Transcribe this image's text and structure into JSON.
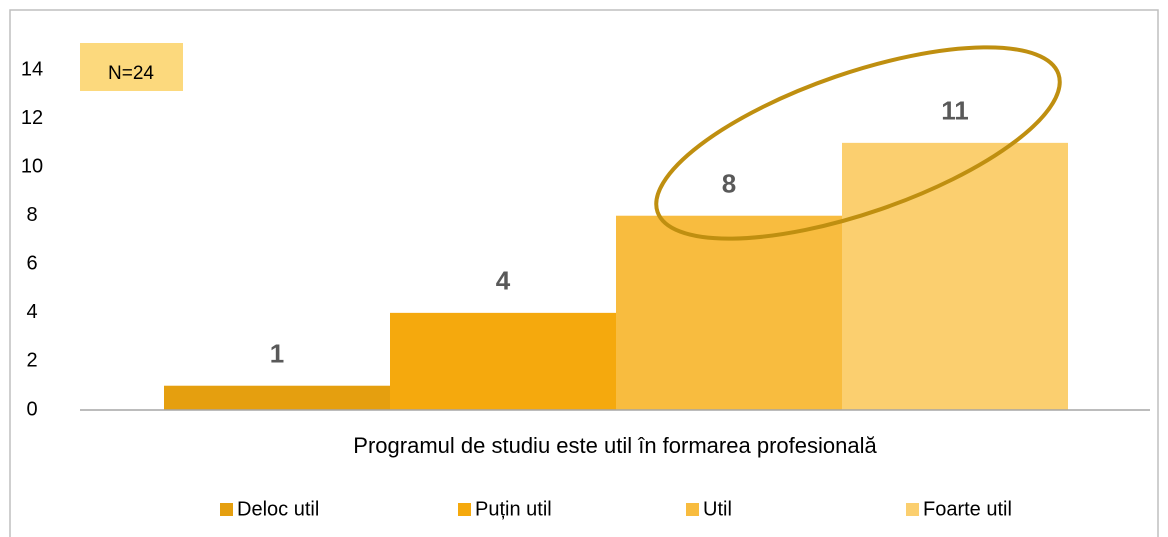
{
  "chart_data": {
    "type": "bar",
    "categories": [
      "Programul de studiu este util în formarea profesională"
    ],
    "series": [
      {
        "name": "Deloc util",
        "color": "#e59f0f",
        "values": [
          1
        ]
      },
      {
        "name": "Puțin util",
        "color": "#f5a90d",
        "values": [
          4
        ]
      },
      {
        "name": "Util",
        "color": "#f8bc3f",
        "values": [
          8
        ]
      },
      {
        "name": "Foarte util",
        "color": "#fbcf6f",
        "values": [
          11
        ]
      }
    ],
    "annotation": "N=24",
    "ylim": [
      0,
      14
    ],
    "yticks": [
      0,
      2,
      4,
      6,
      8,
      10,
      12,
      14
    ],
    "grid": false,
    "legend": "bottom"
  }
}
